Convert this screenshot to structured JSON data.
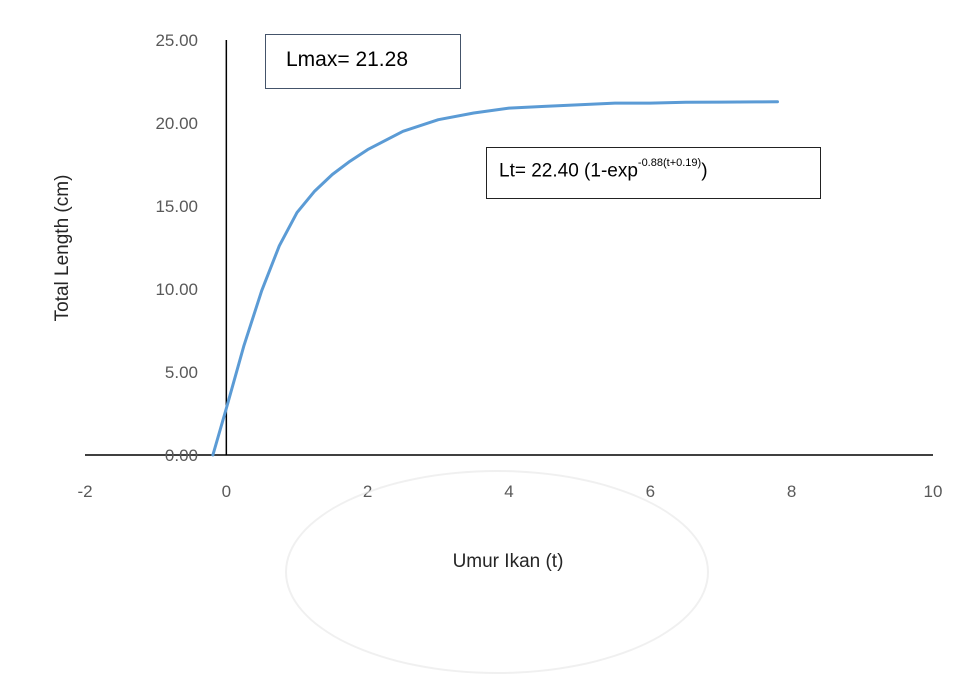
{
  "chart_data": {
    "type": "line",
    "xlabel": "Umur Ikan (t)",
    "ylabel": "Total Length (cm)",
    "xlim": [
      -2,
      10
    ],
    "ylim": [
      0,
      25
    ],
    "x_ticks": [
      "-2",
      "0",
      "2",
      "4",
      "6",
      "8",
      "10"
    ],
    "y_ticks": [
      "0.00",
      "5.00",
      "10.00",
      "15.00",
      "20.00",
      "25.00"
    ],
    "grid": false,
    "legend": "none",
    "series": [
      {
        "color": "#5b9bd5",
        "x": [
          -0.19,
          0,
          0.25,
          0.5,
          0.75,
          1,
          1.25,
          1.5,
          1.75,
          2,
          2.5,
          3,
          3.5,
          4,
          4.5,
          5,
          5.5,
          6,
          6.5,
          7,
          7.5,
          7.8
        ],
        "y": [
          0.0,
          2.8,
          6.6,
          9.9,
          12.6,
          14.6,
          15.9,
          16.9,
          17.7,
          18.4,
          19.5,
          20.2,
          20.6,
          20.9,
          21.0,
          21.1,
          21.2,
          21.2,
          21.25,
          21.26,
          21.27,
          21.28
        ]
      }
    ],
    "annotations": {
      "lmax": "Lmax= 21.28",
      "equation_main": "Lt= 22.40 (1-exp",
      "equation_sup": "-0.88(t+0.19)",
      "equation_close": ")"
    }
  }
}
